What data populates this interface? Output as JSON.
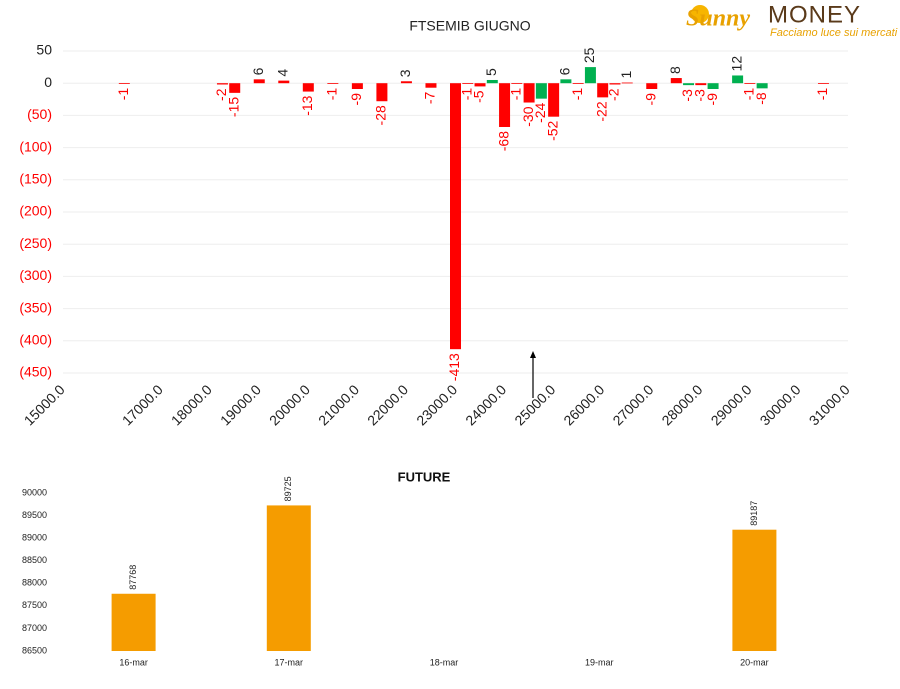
{
  "logo": {
    "brand": "Sunny",
    "name": "MONEY",
    "tagline": "Facciamo luce sui mercati"
  },
  "chart_data": [
    {
      "type": "bar",
      "title": "FTSEMIB GIUGNO",
      "x": [
        16250,
        18250,
        18500,
        19000,
        19500,
        20000,
        20500,
        21000,
        21500,
        22000,
        22500,
        23000,
        23250,
        23500,
        23750,
        24000,
        24250,
        24500,
        24750,
        25000,
        25250,
        25500,
        25750,
        26000,
        26250,
        26500,
        27000,
        27500,
        27750,
        28000,
        28250,
        28750,
        29000,
        29250,
        30500
      ],
      "values": [
        -1,
        -2,
        -15,
        6,
        4,
        -13,
        -1,
        -9,
        -28,
        3,
        -7,
        -413,
        -1,
        -5,
        5,
        -68,
        -1,
        -30,
        -24,
        -52,
        6,
        -1,
        25,
        -22,
        -2,
        1,
        -9,
        8,
        -3,
        -3,
        -9,
        12,
        -1,
        -8,
        -1
      ],
      "colors": [
        "#ff0000",
        "#ff0000",
        "#ff0000",
        "#ff0000",
        "#ff0000",
        "#ff0000",
        "#ff0000",
        "#ff0000",
        "#ff0000",
        "#ff0000",
        "#ff0000",
        "#ff0000",
        "#ff0000",
        "#ff0000",
        "#00b050",
        "#ff0000",
        "#ff0000",
        "#ff0000",
        "#00b050",
        "#ff0000",
        "#00b050",
        "#ff0000",
        "#00b050",
        "#ff0000",
        "#ff0000",
        "#ff0000",
        "#ff0000",
        "#ff0000",
        "#00b050",
        "#ff0000",
        "#00b050",
        "#00b050",
        "#ff0000",
        "#00b050",
        "#ff0000"
      ],
      "xlim": [
        15000,
        31000
      ],
      "xticks": [
        {
          "value": 15000,
          "label": "15000.0"
        },
        {
          "value": 17000,
          "label": "17000.0"
        },
        {
          "value": 18000,
          "label": "18000.0"
        },
        {
          "value": 19000,
          "label": "19000.0"
        },
        {
          "value": 20000,
          "label": "20000.0"
        },
        {
          "value": 21000,
          "label": "21000.0"
        },
        {
          "value": 22000,
          "label": "22000.0"
        },
        {
          "value": 23000,
          "label": "23000.0"
        },
        {
          "value": 24000,
          "label": "24000.0"
        },
        {
          "value": 25000,
          "label": "25000.0"
        },
        {
          "value": 26000,
          "label": "26000.0"
        },
        {
          "value": 27000,
          "label": "27000.0"
        },
        {
          "value": 28000,
          "label": "28000.0"
        },
        {
          "value": 29000,
          "label": "29000.0"
        },
        {
          "value": 30000,
          "label": "30000.0"
        },
        {
          "value": 31000,
          "label": "31000.0"
        }
      ],
      "ylim": [
        -450,
        50
      ],
      "yticks": [
        50,
        0,
        {
          "value": -50,
          "label": "(50)"
        },
        {
          "value": -100,
          "label": "(100)"
        },
        {
          "value": -150,
          "label": "(150)"
        },
        {
          "value": -200,
          "label": "(200)"
        },
        {
          "value": -250,
          "label": "(250)"
        },
        {
          "value": -300,
          "label": "(300)"
        },
        {
          "value": -350,
          "label": "(350)"
        },
        {
          "value": -400,
          "label": "(400)"
        },
        {
          "value": -450,
          "label": "(450)"
        }
      ],
      "negative_label_color": "#ff0000",
      "grid": true
    },
    {
      "type": "bar",
      "title": "FUTURE",
      "categories": [
        "16-mar",
        "17-mar",
        "18-mar",
        "19-mar",
        "20-mar"
      ],
      "values": [
        87768,
        89725,
        null,
        null,
        89187
      ],
      "color": "#f59c00",
      "ylim": [
        86500,
        90000
      ],
      "yticks": [
        86500,
        87000,
        87500,
        88000,
        88500,
        89000,
        89500,
        90000
      ],
      "grid": false
    }
  ]
}
